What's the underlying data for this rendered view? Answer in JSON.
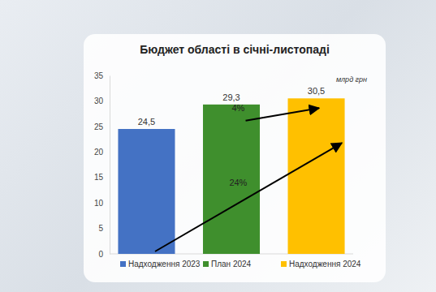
{
  "chart_data": {
    "type": "bar",
    "title": "Бюджет області в січні-листопаді",
    "ylabel": "млрд грн",
    "categories": [
      "Надходження 2023",
      "План 2024",
      "Надходження 2024"
    ],
    "values": [
      24.5,
      29.3,
      30.5
    ],
    "value_labels": [
      "24,5",
      "29,3",
      "30,5"
    ],
    "colors": [
      "#4472c4",
      "#3f8f2d",
      "#ffc000"
    ],
    "ylim": [
      0,
      35
    ],
    "yticks": [
      0,
      5,
      10,
      15,
      20,
      25,
      30,
      35
    ],
    "grid": false,
    "data_labels": true,
    "tick_labels": "y",
    "legend": "bottom",
    "annotations": [
      {
        "text": "4%"
      },
      {
        "text": "24%"
      }
    ]
  }
}
